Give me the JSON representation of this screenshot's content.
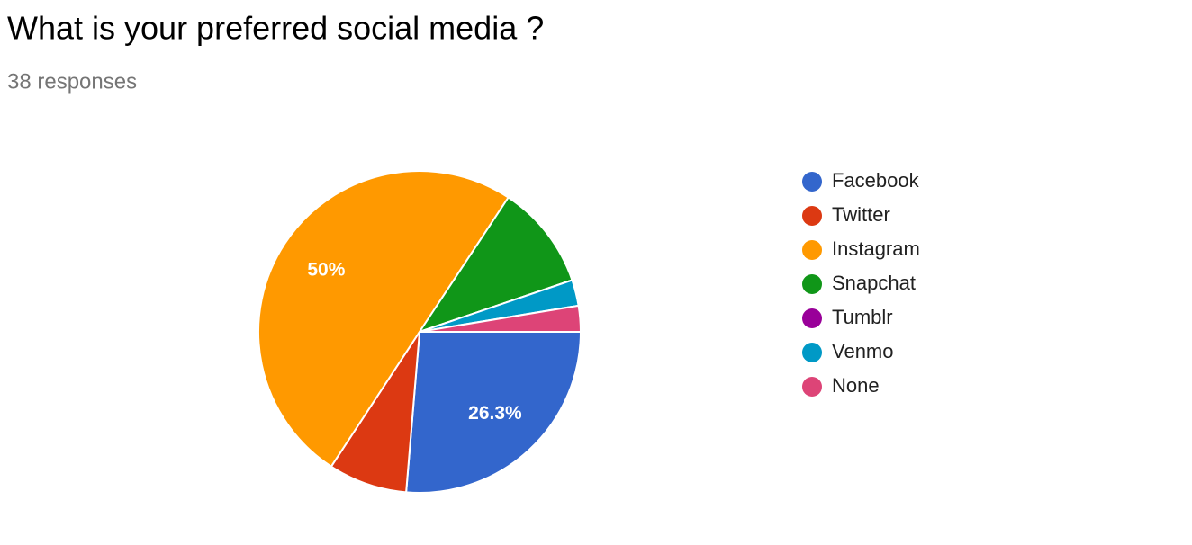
{
  "chart_data": {
    "type": "pie",
    "title": "What is your preferred social media ?",
    "subtitle": "38 responses",
    "categories": [
      "Facebook",
      "Twitter",
      "Instagram",
      "Snapchat",
      "Tumblr",
      "Venmo",
      "None"
    ],
    "values": [
      26.3,
      7.9,
      50,
      10.5,
      0,
      2.6,
      2.6
    ],
    "value_labels": [
      "26.3%",
      null,
      "50%",
      null,
      null,
      null,
      null
    ],
    "colors": [
      "#3366cc",
      "#dc3912",
      "#ff9900",
      "#109618",
      "#990099",
      "#0099c6",
      "#dd4477"
    ],
    "legend": "right"
  }
}
